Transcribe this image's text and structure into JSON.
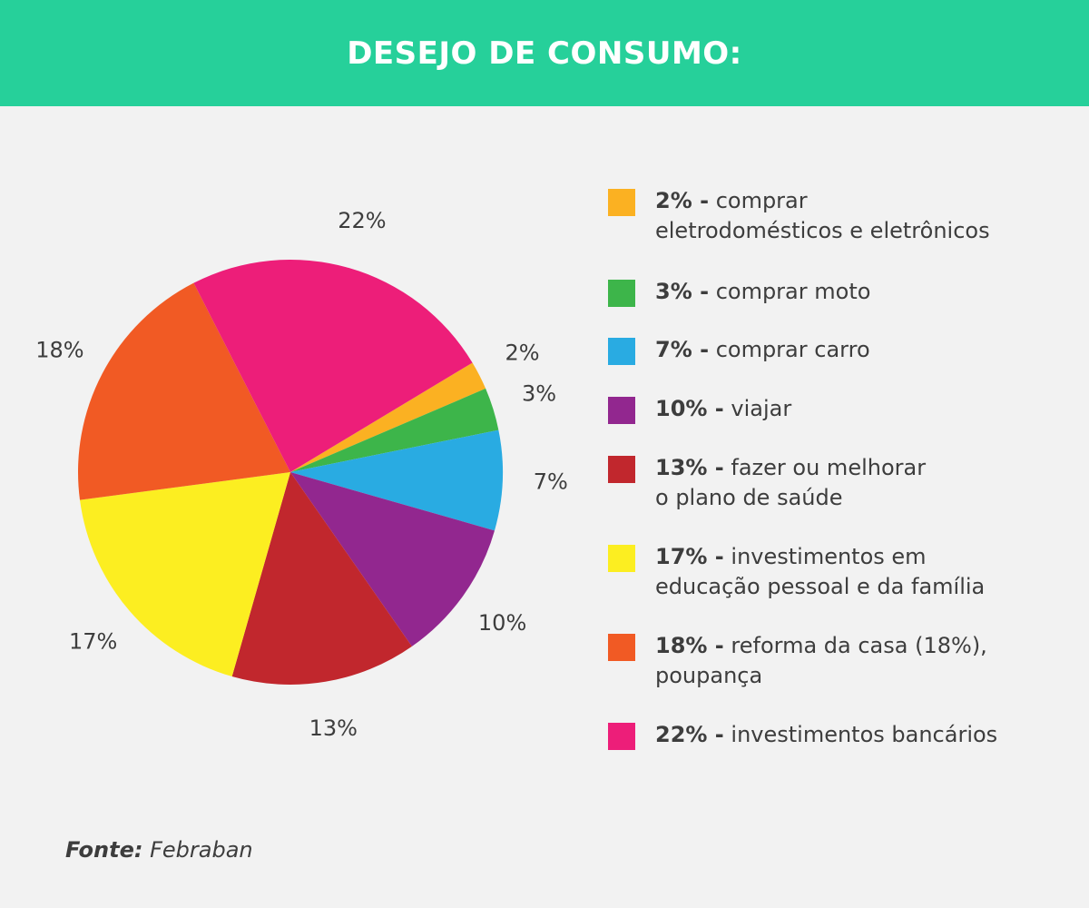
{
  "header": {
    "title": "DESEJO DE CONSUMO:",
    "background": "#26d09a"
  },
  "chart_data": {
    "type": "pie",
    "slices": [
      {
        "value": 2,
        "label": "2%",
        "pct_text": "2% -",
        "lines": [
          "comprar",
          "eletrodomésticos e eletrônicos"
        ],
        "color": "#fbb122"
      },
      {
        "value": 3,
        "label": "3%",
        "pct_text": "3% -",
        "lines": [
          "comprar moto"
        ],
        "color": "#3db54a"
      },
      {
        "value": 7,
        "label": "7%",
        "pct_text": "7% -",
        "lines": [
          "comprar carro"
        ],
        "color": "#29abe2"
      },
      {
        "value": 10,
        "label": "10%",
        "pct_text": "10% -",
        "lines": [
          "viajar"
        ],
        "color": "#92278f"
      },
      {
        "value": 13,
        "label": "13%",
        "pct_text": "13% -",
        "lines": [
          "fazer ou melhorar",
          "o plano de saúde"
        ],
        "color": "#c1272d"
      },
      {
        "value": 17,
        "label": "17%",
        "pct_text": "17% -",
        "lines": [
          "investimentos em",
          "educação pessoal e da família"
        ],
        "color": "#fcee21"
      },
      {
        "value": 18,
        "label": "18%",
        "pct_text": "18% -",
        "lines": [
          "reforma da casa (18%),",
          "poupança"
        ],
        "color": "#f15a24"
      },
      {
        "value": 22,
        "label": "22%",
        "pct_text": "22% -",
        "lines": [
          "investimentos bancários"
        ],
        "color": "#ed1e79"
      }
    ]
  },
  "source": {
    "label": "Fonte:",
    "value": "Febraban"
  }
}
